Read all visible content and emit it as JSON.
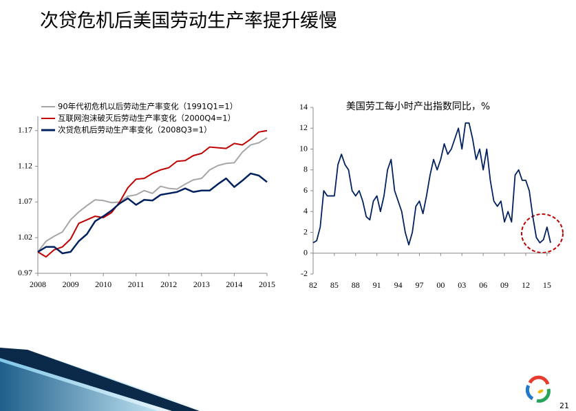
{
  "title": "次贷危机后美国劳动生产率提升缓慢",
  "page_number": "21",
  "chart_data": [
    {
      "type": "line",
      "categories": [
        "2008",
        null,
        null,
        null,
        "2009",
        null,
        null,
        null,
        "2010",
        null,
        null,
        null,
        "2011",
        null,
        null,
        null,
        "2012",
        null,
        null,
        null,
        "2013",
        null,
        null,
        null,
        "2014",
        null,
        null,
        null,
        "2015"
      ],
      "ylim": [
        0.97,
        1.19
      ],
      "yticks": [
        0.97,
        1.02,
        1.07,
        1.12,
        1.17
      ],
      "legend": "top-left",
      "series": [
        {
          "name": "90年代初危机以后劳动生产率变化（1991Q1=1）",
          "color": "#a6a6a6",
          "values": [
            1.0,
            1.015,
            1.022,
            1.028,
            1.045,
            1.056,
            1.065,
            1.073,
            1.072,
            1.069,
            1.07,
            1.078,
            1.08,
            1.086,
            1.082,
            1.092,
            1.089,
            1.088,
            1.095,
            1.101,
            1.103,
            1.115,
            1.121,
            1.124,
            1.125,
            1.14,
            1.15,
            1.153,
            1.16
          ]
        },
        {
          "name": "互联网泡沫破灭后劳动生产率变化（2000Q4=1）",
          "color": "#c00000",
          "values": [
            1.0,
            0.993,
            1.003,
            1.007,
            1.018,
            1.04,
            1.045,
            1.05,
            1.048,
            1.055,
            1.07,
            1.09,
            1.102,
            1.103,
            1.11,
            1.115,
            1.118,
            1.127,
            1.128,
            1.135,
            1.138,
            1.147,
            1.146,
            1.145,
            1.152,
            1.15,
            1.158,
            1.168,
            1.17
          ]
        },
        {
          "name": "次贷危机后劳动生产率变化（2008Q3=1）",
          "color": "#002060",
          "values": [
            1.0,
            1.007,
            1.007,
            0.998,
            1.0,
            1.015,
            1.025,
            1.043,
            1.05,
            1.058,
            1.068,
            1.075,
            1.066,
            1.073,
            1.072,
            1.08,
            1.082,
            1.084,
            1.089,
            1.084,
            1.086,
            1.086,
            1.095,
            1.103,
            1.091,
            1.1,
            1.11,
            1.107,
            1.098
          ]
        }
      ]
    },
    {
      "type": "line",
      "title": "美国劳工每小时产出指数同比，%",
      "categories": [
        "82",
        null,
        null,
        null,
        null,
        null,
        "85",
        null,
        null,
        null,
        null,
        null,
        "88",
        null,
        null,
        null,
        null,
        null,
        "91",
        null,
        null,
        null,
        null,
        null,
        "94",
        null,
        null,
        null,
        null,
        null,
        "97",
        null,
        null,
        null,
        null,
        null,
        "00",
        null,
        null,
        null,
        null,
        null,
        "03",
        null,
        null,
        null,
        null,
        null,
        "06",
        null,
        null,
        null,
        null,
        null,
        "09",
        null,
        null,
        null,
        null,
        null,
        "12",
        null,
        null,
        null,
        null,
        null,
        "15",
        null
      ],
      "ylim": [
        -2,
        14
      ],
      "yticks": [
        -2,
        0,
        2,
        4,
        6,
        8,
        10,
        12,
        14
      ],
      "color": "#002060",
      "values": [
        1.0,
        1.2,
        2.5,
        6.0,
        5.5,
        5.5,
        5.5,
        8.5,
        9.5,
        8.5,
        8.0,
        6.0,
        5.5,
        6.0,
        5.0,
        3.5,
        3.2,
        5.0,
        5.5,
        4.0,
        5.5,
        8.0,
        9.0,
        6.0,
        5.0,
        4.0,
        2.0,
        0.8,
        2.0,
        4.5,
        5.0,
        3.8,
        5.5,
        7.5,
        9.0,
        8.0,
        9.0,
        10.5,
        9.5,
        10.0,
        11.0,
        12.0,
        10.0,
        12.5,
        12.5,
        11.0,
        9.0,
        10.0,
        8.0,
        10.0,
        7.0,
        5.0,
        4.5,
        5.0,
        3.0,
        4.0,
        3.0,
        7.5,
        8.0,
        7.0,
        7.0,
        6.0,
        3.5,
        1.5,
        1.0,
        1.3,
        2.5,
        1.0
      ]
    }
  ]
}
